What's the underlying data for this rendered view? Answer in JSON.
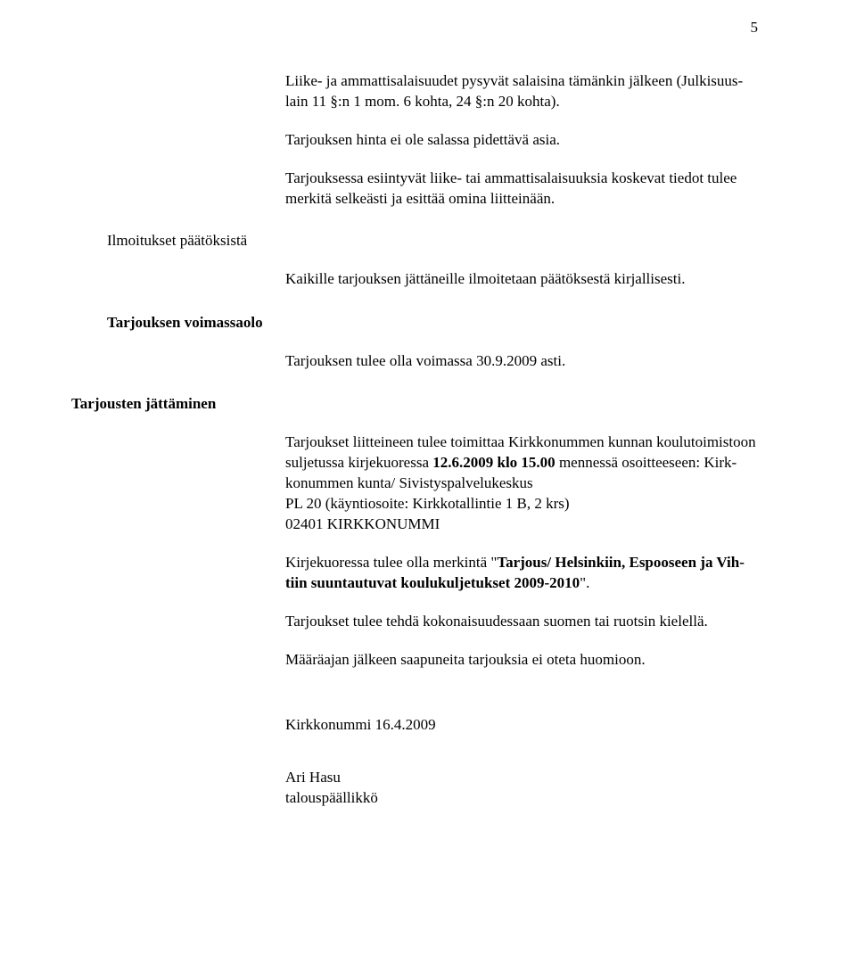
{
  "page_number": "5",
  "para1": "Liike- ja ammattisalaisuudet pysyvät salaisina tämänkin jälkeen (Julkisuus-lain 11 §:n 1 mom. 6 kohta,  24 §:n 20 kohta).",
  "para2": "Tarjouksen hinta ei ole salassa pidettävä asia.",
  "para3": "Tarjouksessa esiintyvät liike- tai ammattisalaisuuksia koskevat tiedot tulee merkitä selkeästi ja esittää omina liitteinään.",
  "heading1": "Ilmoitukset päätöksistä",
  "para4": "Kaikille tarjouksen jättäneille ilmoitetaan päätöksestä kirjallisesti.",
  "heading2": "Tarjouksen voimassaolo",
  "para5": "Tarjouksen tulee olla voimassa 30.9.2009 asti.",
  "heading3": "Tarjousten jättäminen",
  "para6_pre": "Tarjoukset liitteineen tulee toimittaa Kirkkonummen kunnan koulutoimistoon suljetussa kirjekuoressa ",
  "para6_bold": "12.6.2009  klo 15.00",
  "para6_post": " mennessä osoitteeseen: Kirk-konummen kunta/ Sivistyspalvelukeskus",
  "para6_addr1": " PL 20 (käyntiosoite: Kirkkotallintie 1 B, 2 krs)",
  "para6_addr2": "02401 KIRKKONUMMI",
  "para7_pre": "Kirjekuoressa tulee olla merkintä \"",
  "para7_bold": "Tarjous/ Helsinkiin, Espooseen ja Vih-tiin suuntautuvat koulukuljetukset 2009-2010",
  "para7_post": "\".",
  "para8": "Tarjoukset tulee tehdä kokonaisuudessaan suomen tai ruotsin kielellä.",
  "para9": " Määräajan jälkeen saapuneita tarjouksia ei oteta huomioon.",
  "sig_location_date": "Kirkkonummi 16.4.2009",
  "sig_name": "Ari Hasu",
  "sig_title": "talouspäällikkö"
}
